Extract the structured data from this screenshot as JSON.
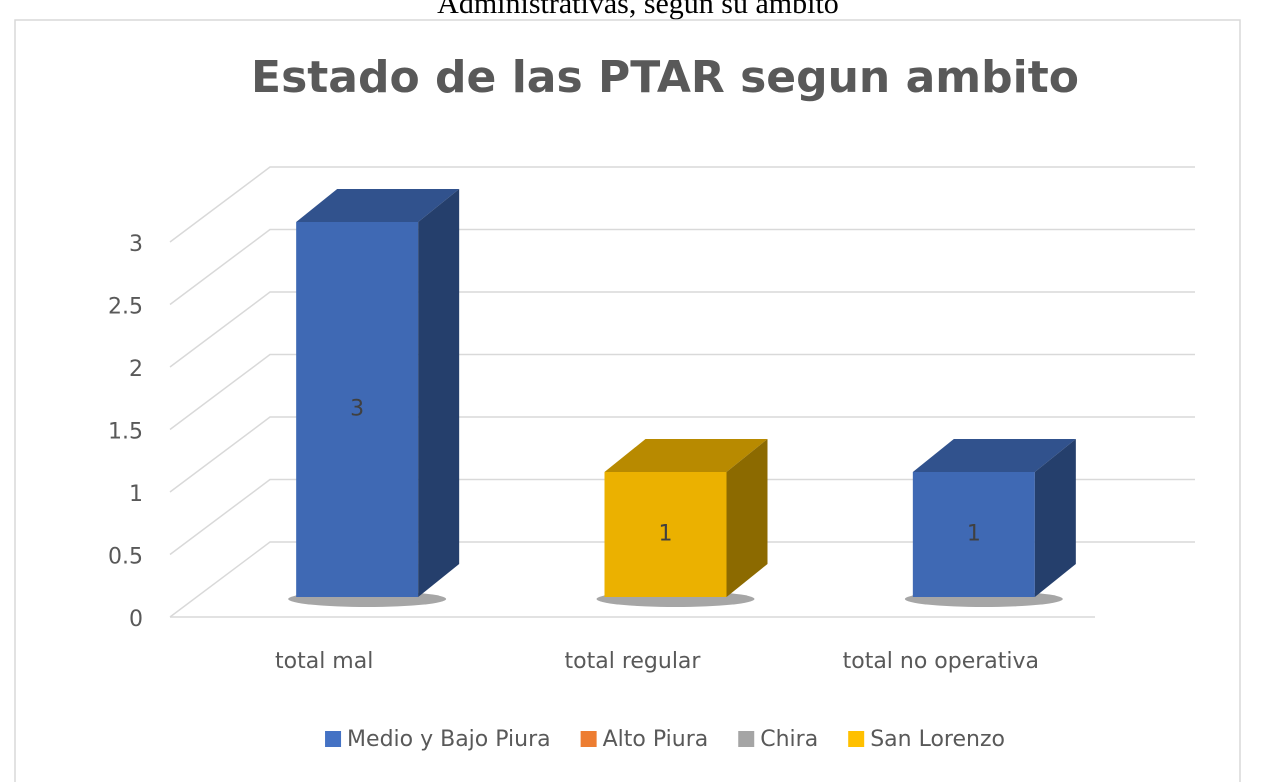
{
  "caption": "Administrativas, según su ámbito",
  "chart_data": {
    "type": "bar3d",
    "title": "Estado de las PTAR segun ambito",
    "categories": [
      "total mal",
      "total regular",
      "total no operativa"
    ],
    "series": [
      {
        "name": "Medio y Bajo Piura",
        "color": "#4472c4",
        "values": [
          3,
          null,
          1
        ]
      },
      {
        "name": "Alto Piura",
        "color": "#ed7d31",
        "values": [
          null,
          null,
          null
        ]
      },
      {
        "name": "Chira",
        "color": "#a5a5a5",
        "values": [
          null,
          null,
          null
        ]
      },
      {
        "name": "San Lorenzo",
        "color": "#ffc000",
        "values": [
          null,
          1,
          null
        ]
      }
    ],
    "ylim": [
      0,
      3
    ],
    "yticks": [
      0,
      {
        "value": 0.5,
        "label": "0.5"
      },
      1,
      {
        "value": 1.5,
        "label": "1.5"
      },
      2,
      {
        "value": 2.5,
        "label": "2.5"
      },
      3
    ],
    "grid": true,
    "data_labels": true,
    "legend": "bottom"
  }
}
